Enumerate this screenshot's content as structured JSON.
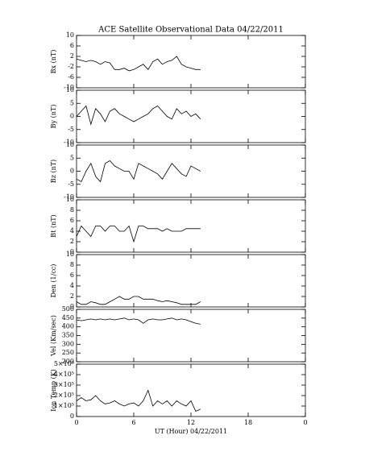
{
  "chart_data": [
    {
      "type": "line",
      "title": "ACE Satellite Observational Data   04/22/2011",
      "ylabel": "Bx (nT)",
      "x": [
        0,
        0.5,
        1,
        1.5,
        2,
        2.5,
        3,
        3.5,
        4,
        4.5,
        5,
        5.5,
        6,
        6.5,
        7,
        7.5,
        8,
        8.5,
        9,
        9.5,
        10,
        10.5,
        11,
        11.5,
        12,
        12.5,
        13
      ],
      "values": [
        1,
        0.5,
        0,
        0.5,
        0,
        -1,
        0,
        -0.5,
        -3,
        -3,
        -2.5,
        -3.5,
        -3,
        -2,
        -1,
        -3,
        0,
        1,
        -1,
        0,
        0.5,
        2,
        -1,
        -2,
        -2.5,
        -3,
        -3
      ],
      "ylim": [
        -10,
        10
      ],
      "yticks": [
        -10,
        -6,
        -2,
        2,
        6,
        10
      ]
    },
    {
      "type": "line",
      "ylabel": "By (nT)",
      "x": [
        0,
        0.5,
        1,
        1.5,
        2,
        2.5,
        3,
        3.5,
        4,
        4.5,
        5,
        5.5,
        6,
        6.5,
        7,
        7.5,
        8,
        8.5,
        9,
        9.5,
        10,
        10.5,
        11,
        11.5,
        12,
        12.5,
        13
      ],
      "values": [
        0,
        2,
        4,
        -3,
        3,
        1,
        -2,
        2,
        3,
        1,
        0,
        -1,
        -2,
        -1,
        0,
        1,
        3,
        4,
        2,
        0,
        -1,
        3,
        1,
        2,
        0,
        1,
        -1
      ],
      "ylim": [
        -10,
        10
      ],
      "yticks": [
        -10,
        -5,
        0,
        5,
        10
      ]
    },
    {
      "type": "line",
      "ylabel": "Bz (nT)",
      "x": [
        0,
        0.5,
        1,
        1.5,
        2,
        2.5,
        3,
        3.5,
        4,
        4.5,
        5,
        5.5,
        6,
        6.5,
        7,
        7.5,
        8,
        8.5,
        9,
        9.5,
        10,
        10.5,
        11,
        11.5,
        12,
        12.5,
        13
      ],
      "values": [
        -3,
        -4,
        0,
        3,
        -2,
        -4,
        3,
        4,
        2,
        1,
        0,
        0,
        -3,
        3,
        2,
        1,
        0,
        -1,
        -3,
        0,
        3,
        1,
        -1,
        -2,
        2,
        1,
        0
      ],
      "ylim": [
        -10,
        10
      ],
      "yticks": [
        -10,
        -5,
        0,
        5,
        10
      ]
    },
    {
      "type": "line",
      "ylabel": "Bt (nT)",
      "x": [
        0,
        0.5,
        1,
        1.5,
        2,
        2.5,
        3,
        3.5,
        4,
        4.5,
        5,
        5.5,
        6,
        6.5,
        7,
        7.5,
        8,
        8.5,
        9,
        9.5,
        10,
        10.5,
        11,
        11.5,
        12,
        12.5,
        13
      ],
      "values": [
        3,
        5,
        4,
        3,
        5,
        5,
        4,
        5,
        5,
        4,
        4,
        5,
        2,
        5,
        5,
        4.5,
        4.5,
        4.5,
        4,
        4.5,
        4,
        4,
        4,
        4.5,
        4.5,
        4.5,
        4.5
      ],
      "ylim": [
        0,
        10
      ],
      "yticks": [
        0,
        2,
        4,
        6,
        8,
        10
      ]
    },
    {
      "type": "line",
      "ylabel": "Den (1/cc)",
      "x": [
        0,
        0.5,
        1,
        1.5,
        2,
        2.5,
        3,
        3.5,
        4,
        4.5,
        5,
        5.5,
        6,
        6.5,
        7,
        7.5,
        8,
        8.5,
        9,
        9.5,
        10,
        10.5,
        11,
        11.5,
        12,
        12.5,
        13
      ],
      "values": [
        1,
        0.5,
        0.5,
        1,
        0.8,
        0.5,
        0.5,
        1,
        1.5,
        2,
        1.5,
        1.5,
        2,
        2,
        1.5,
        1.5,
        1.5,
        1.2,
        1,
        1.2,
        1,
        0.8,
        0.5,
        0.5,
        0.5,
        0.5,
        1
      ],
      "ylim": [
        0,
        10
      ],
      "yticks": [
        0,
        2,
        4,
        6,
        8,
        10
      ]
    },
    {
      "type": "line",
      "ylabel": "Vel (Km/sec)",
      "x": [
        0,
        0.5,
        1,
        1.5,
        2,
        2.5,
        3,
        3.5,
        4,
        4.5,
        5,
        5.5,
        6,
        6.5,
        7,
        7.5,
        8,
        8.5,
        9,
        9.5,
        10,
        10.5,
        11,
        11.5,
        12,
        12.5,
        13
      ],
      "values": [
        440,
        435,
        440,
        445,
        440,
        445,
        440,
        445,
        440,
        445,
        450,
        440,
        445,
        440,
        420,
        440,
        445,
        440,
        440,
        445,
        450,
        440,
        445,
        440,
        430,
        420,
        415
      ],
      "ylim": [
        200,
        500
      ],
      "yticks": [
        200,
        250,
        300,
        350,
        400,
        450,
        500
      ]
    },
    {
      "type": "line",
      "ylabel": "Ion Temp (K)",
      "x": [
        0,
        0.5,
        1,
        1.5,
        2,
        2.5,
        3,
        3.5,
        4,
        4.5,
        5,
        5.5,
        6,
        6.5,
        7,
        7.5,
        8,
        8.5,
        9,
        9.5,
        10,
        10.5,
        11,
        11.5,
        12,
        12.5,
        13
      ],
      "values": [
        150000,
        180000,
        150000,
        160000,
        200000,
        150000,
        120000,
        130000,
        150000,
        120000,
        100000,
        120000,
        130000,
        100000,
        150000,
        250000,
        100000,
        150000,
        120000,
        150000,
        100000,
        150000,
        120000,
        100000,
        150000,
        50000,
        70000
      ],
      "ylim": [
        0,
        500000
      ],
      "yticks": [
        0,
        {
          "value": 100000,
          "label": "1×10⁵"
        },
        {
          "value": 200000,
          "label": "2×10⁵"
        },
        {
          "value": 300000,
          "label": "3×10⁵"
        },
        {
          "value": 400000,
          "label": "4×10⁵"
        },
        {
          "value": 500000,
          "label": "5×10⁵"
        }
      ],
      "xlabel": "UT (Hour)  04/22/2011",
      "xlim": [
        0,
        24
      ],
      "xticks": [
        0,
        6,
        12,
        18,
        {
          "value": 24,
          "label": "0"
        }
      ]
    }
  ]
}
